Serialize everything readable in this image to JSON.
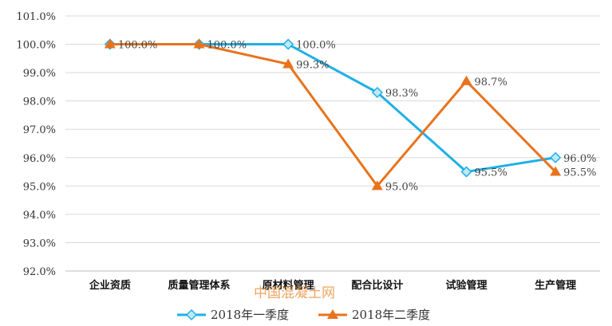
{
  "chart_data": {
    "type": "line",
    "categories": [
      "企业资质",
      "质量管理体系",
      "原材料管理",
      "配合比设计",
      "试验管理",
      "生产管理"
    ],
    "series": [
      {
        "name": "2018年一季度",
        "values": [
          100.0,
          100.0,
          100.0,
          98.3,
          95.5,
          96.0
        ],
        "labels": [
          "",
          "",
          "100.0%",
          "98.3%",
          "95.5%",
          "96.0%"
        ],
        "color": "#1fb0e6",
        "marker": "diamond"
      },
      {
        "name": "2018年二季度",
        "values": [
          100.0,
          100.0,
          99.3,
          95.0,
          98.7,
          95.5
        ],
        "labels": [
          "100.0%",
          "100.0%",
          "99.3%",
          "95.0%",
          "98.7%",
          "95.5%"
        ],
        "color": "#e8731c",
        "marker": "triangle"
      }
    ],
    "ylim": [
      92.0,
      101.0
    ],
    "yticks": [
      "101.0%",
      "100.0%",
      "99.0%",
      "98.0%",
      "97.0%",
      "96.0%",
      "95.0%",
      "94.0%",
      "93.0%",
      "92.0%"
    ],
    "grid": true,
    "legend": "bottom"
  },
  "watermark": "中国混凝土网"
}
